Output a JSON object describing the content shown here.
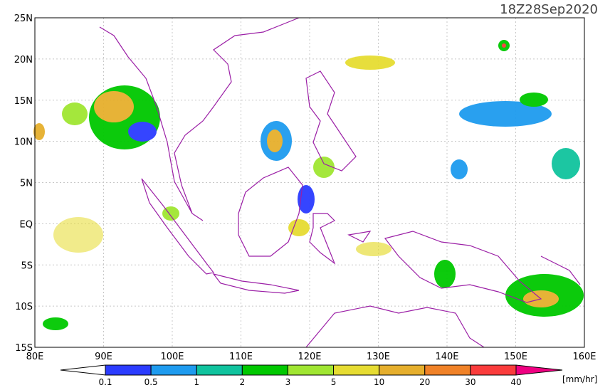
{
  "map": {
    "title": "18Z28Sep2020",
    "lat_labels": [
      "25N",
      "20N",
      "15N",
      "10N",
      "5N",
      "EQ",
      "5S",
      "10S",
      "15S"
    ],
    "lon_labels": [
      "80E",
      "90E",
      "100E",
      "110E",
      "120E",
      "130E",
      "140E",
      "150E",
      "160E"
    ]
  },
  "colorbar": {
    "labels": [
      "0.1",
      "0.5",
      "1",
      "2",
      "3",
      "5",
      "10",
      "20",
      "30",
      "40"
    ],
    "colors": [
      "#2b3cff",
      "#1e9bef",
      "#10c39e",
      "#00c800",
      "#a0e632",
      "#e6dc32",
      "#e6af2d",
      "#f08228",
      "#fa3c3c",
      "#f00082"
    ],
    "unit": "[mm/hr]"
  }
}
